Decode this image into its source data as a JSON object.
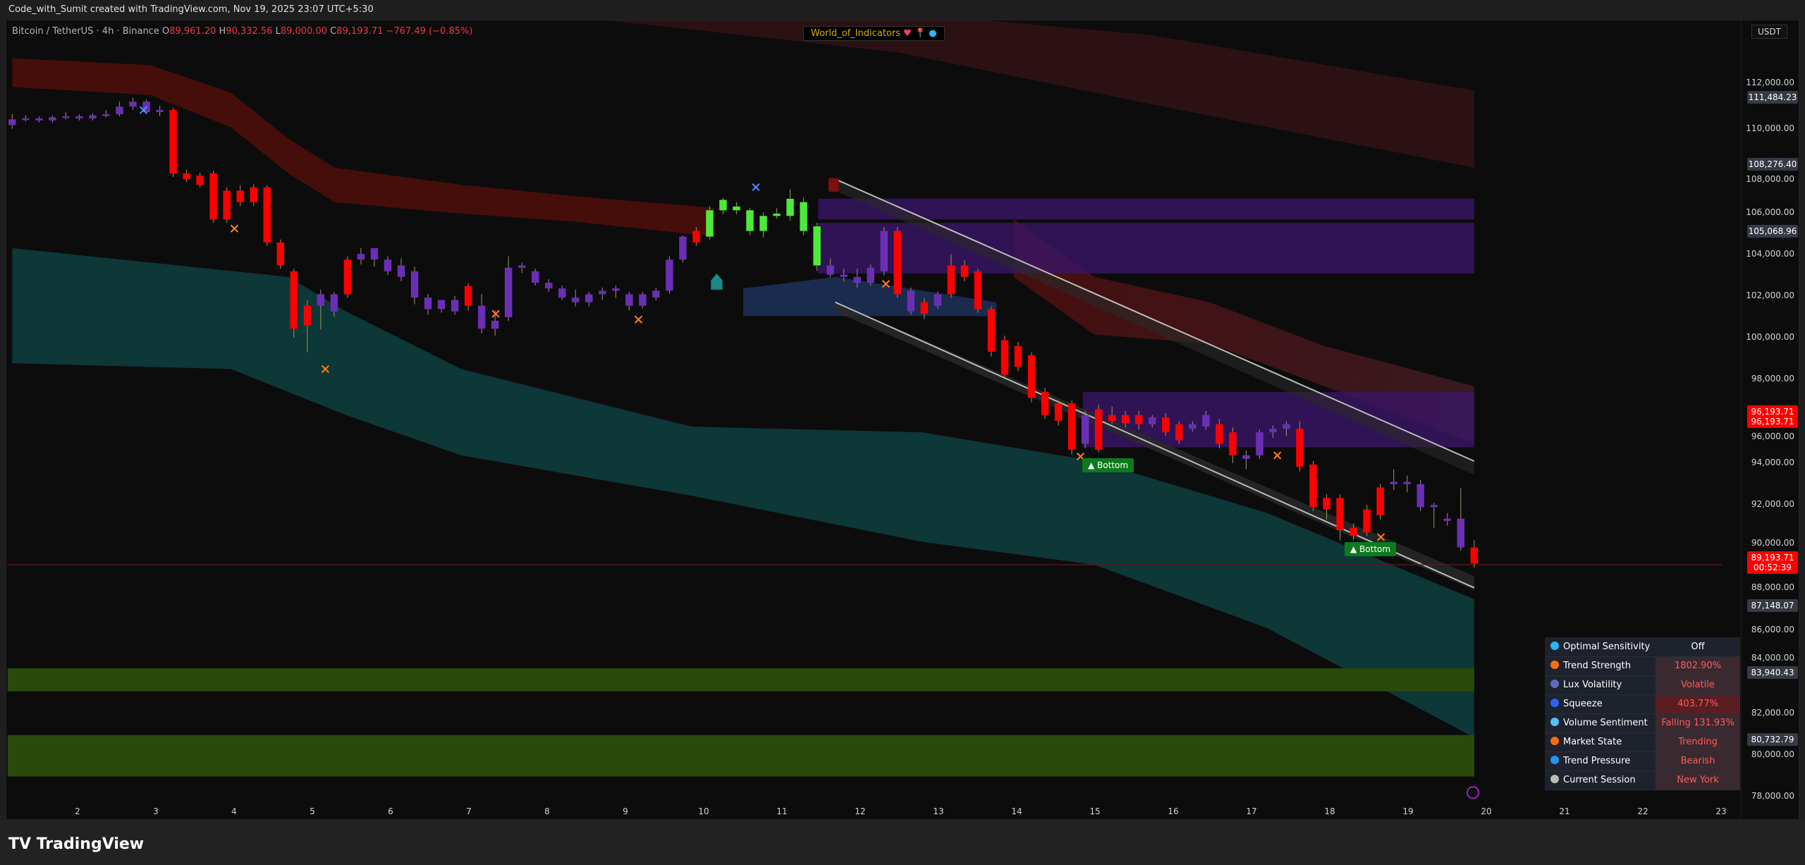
{
  "topbar": {
    "caption": "Code_with_Sumit created with TradingView.com, Nov 19, 2025 23:07 UTC+5:30"
  },
  "legend": {
    "symbol": "Bitcoin / TetherUS · 4h · Binance",
    "o_label": "O",
    "o": "89,961.20",
    "h_label": "H",
    "h": "90,332.56",
    "l_label": "L",
    "l": "89,000.00",
    "c_label": "C",
    "c": "89,193.71",
    "change": "−767.49 (−0.85%)"
  },
  "watermark": {
    "text": "World_of_Indicators"
  },
  "price_axis": {
    "currency": "USDT",
    "labels": [
      {
        "value": "111,484.23",
        "price": 111484.23,
        "style": "gray"
      },
      {
        "value": "108,276.40",
        "price": 108276.4,
        "style": "gray"
      },
      {
        "value": "105,068.96",
        "price": 105068.96,
        "style": "gray"
      },
      {
        "value": "96,193.71",
        "value2": "96,193.71",
        "price": 96193.71,
        "style": "red"
      },
      {
        "value": "89,193.71",
        "value2": "00:52:39",
        "price": 89193.71,
        "style": "red"
      },
      {
        "value": "87,148.07",
        "price": 87148.07,
        "style": "gray"
      },
      {
        "value": "83,940.43",
        "price": 83940.43,
        "style": "gray"
      },
      {
        "value": "80,732.79",
        "price": 80732.79,
        "style": "gray"
      }
    ]
  },
  "markers": {
    "bottom_1": "Bottom",
    "bottom_2": "Bottom"
  },
  "table": {
    "rows": [
      {
        "icon": "optimal-sensitivity-icon",
        "label": "Optimal Sensitivity",
        "value": "Off",
        "color": "#29b6f6"
      },
      {
        "icon": "trend-strength-icon",
        "label": "Trend Strength",
        "value": "1802.90%",
        "color": "#ff6d00"
      },
      {
        "icon": "volatility-icon",
        "label": "Lux Volatility",
        "value": "Volatile",
        "color": "#5c6bc0"
      },
      {
        "icon": "squeeze-icon",
        "label": "Squeeze",
        "value": "403.77%",
        "color": "#2962ff"
      },
      {
        "icon": "droplet-icon",
        "label": "Volume Sentiment",
        "value": "Falling 131.93%",
        "color": "#4fc3f7"
      },
      {
        "icon": "market-state-icon",
        "label": "Market State",
        "value": "Trending",
        "color": "#ff6d00"
      },
      {
        "icon": "trend-pressure-icon",
        "label": "Trend Pressure",
        "value": "Bearish",
        "color": "#2196f3"
      },
      {
        "icon": "clock-icon",
        "label": "Current Session",
        "value": "New York",
        "color": "#bbbbbb"
      }
    ]
  },
  "footer": {
    "logo": "TradingView"
  },
  "chart_data": {
    "type": "candlestick",
    "title": "Bitcoin / TetherUS · 4h · Binance",
    "ylim": [
      77000,
      113500
    ],
    "y_ticks": [
      78000,
      80000,
      82000,
      84000,
      86000,
      88000,
      90000,
      92000,
      94000,
      96000,
      98000,
      100000,
      102000,
      104000,
      106000,
      108000,
      110000,
      112000
    ],
    "x_ticks": [
      "2",
      "3",
      "4",
      "5",
      "6",
      "7",
      "8",
      "9",
      "10",
      "11",
      "12",
      "13",
      "14",
      "15",
      "16",
      "17",
      "18",
      "19",
      "20",
      "21",
      "22",
      "23"
    ],
    "colors": {
      "bearish": "#ff0000",
      "neutral": "#6a2fb5",
      "bullish": "#4cea3a"
    },
    "candles": [
      [
        110180,
        110700,
        110000,
        110450,
        "p"
      ],
      [
        110450,
        110650,
        110350,
        110500,
        "p"
      ],
      [
        110500,
        110600,
        110300,
        110400,
        "p"
      ],
      [
        110400,
        110650,
        110300,
        110550,
        "p"
      ],
      [
        110550,
        110800,
        110450,
        110600,
        "p"
      ],
      [
        110600,
        110700,
        110400,
        110500,
        "p"
      ],
      [
        110500,
        110750,
        110400,
        110650,
        "p"
      ],
      [
        110650,
        110900,
        110550,
        110700,
        "p"
      ],
      [
        110700,
        111300,
        110600,
        111060,
        "p"
      ],
      [
        111060,
        111484,
        110900,
        111300,
        "p"
      ],
      [
        111300,
        111400,
        110700,
        110800,
        "p"
      ],
      [
        110800,
        111100,
        110600,
        110900,
        "p"
      ],
      [
        110900,
        111000,
        107700,
        107870,
        "r"
      ],
      [
        107870,
        108050,
        107450,
        107590,
        "r"
      ],
      [
        107760,
        107900,
        107200,
        107320,
        "r"
      ],
      [
        107870,
        108000,
        105500,
        105660,
        "r"
      ],
      [
        107040,
        107200,
        105500,
        105660,
        "r"
      ],
      [
        107040,
        107300,
        106300,
        106490,
        "r"
      ],
      [
        107200,
        107350,
        106300,
        106490,
        "r"
      ],
      [
        107200,
        107300,
        104400,
        104560,
        "r"
      ],
      [
        104560,
        104700,
        103300,
        103460,
        "r"
      ],
      [
        103180,
        103300,
        100000,
        100430,
        "r"
      ],
      [
        101530,
        101800,
        99300,
        100590,
        "r"
      ],
      [
        101530,
        102300,
        100400,
        102080,
        "p"
      ],
      [
        101260,
        102200,
        101000,
        102080,
        "p"
      ],
      [
        103740,
        103900,
        101900,
        102080,
        "r"
      ],
      [
        103740,
        104300,
        103500,
        104010,
        "p"
      ],
      [
        103740,
        104200,
        103400,
        104290,
        "p"
      ],
      [
        103740,
        103900,
        103000,
        103180,
        "p"
      ],
      [
        103460,
        103800,
        102700,
        102910,
        "p"
      ],
      [
        103180,
        103400,
        101600,
        101920,
        "p"
      ],
      [
        101920,
        102100,
        101100,
        101370,
        "p"
      ],
      [
        101370,
        101800,
        101200,
        101810,
        "p"
      ],
      [
        101810,
        102000,
        101100,
        101260,
        "p"
      ],
      [
        102470,
        102600,
        101300,
        101530,
        "r"
      ],
      [
        101530,
        102100,
        100200,
        100430,
        "p"
      ],
      [
        100430,
        101300,
        100100,
        100810,
        "p"
      ],
      [
        100980,
        103900,
        100800,
        103350,
        "p"
      ],
      [
        103350,
        103600,
        103100,
        103460,
        "p"
      ],
      [
        103180,
        103300,
        102500,
        102630,
        "p"
      ],
      [
        102630,
        102800,
        102200,
        102360,
        "p"
      ],
      [
        102360,
        102500,
        101800,
        101920,
        "p"
      ],
      [
        101920,
        102300,
        101500,
        101700,
        "p"
      ],
      [
        101700,
        102200,
        101500,
        102080,
        "p"
      ],
      [
        102080,
        102400,
        101800,
        102250,
        "p"
      ],
      [
        102250,
        102500,
        101900,
        102360,
        "p"
      ],
      [
        102080,
        102200,
        101300,
        101530,
        "p"
      ],
      [
        101530,
        102200,
        101400,
        102080,
        "p"
      ],
      [
        101920,
        102400,
        101800,
        102250,
        "p"
      ],
      [
        102250,
        103900,
        102100,
        103740,
        "p"
      ],
      [
        103740,
        104900,
        103600,
        104840,
        "p"
      ],
      [
        105110,
        105300,
        104400,
        104560,
        "r"
      ],
      [
        104840,
        106300,
        104700,
        106100,
        "g"
      ],
      [
        106100,
        106700,
        105900,
        106600,
        "g"
      ],
      [
        106100,
        106500,
        105900,
        106280,
        "g"
      ],
      [
        105110,
        106200,
        104900,
        106100,
        "g"
      ],
      [
        105110,
        106000,
        104800,
        105830,
        "g"
      ],
      [
        105830,
        106200,
        105700,
        105940,
        "g"
      ],
      [
        105830,
        107100,
        105600,
        106650,
        "g"
      ],
      [
        105110,
        106700,
        104900,
        106490,
        "g"
      ],
      [
        103460,
        105500,
        103200,
        105330,
        "g"
      ],
      [
        103460,
        103800,
        102900,
        103020,
        "p"
      ],
      [
        103020,
        103300,
        102700,
        102910,
        "p"
      ],
      [
        102910,
        103300,
        102400,
        102630,
        "p"
      ],
      [
        102630,
        103500,
        102500,
        103350,
        "p"
      ],
      [
        103180,
        105300,
        103000,
        105110,
        "p"
      ],
      [
        105110,
        105300,
        101900,
        102080,
        "r"
      ],
      [
        102250,
        102400,
        101100,
        101260,
        "p"
      ],
      [
        101700,
        101900,
        100900,
        101150,
        "r"
      ],
      [
        101530,
        102200,
        101400,
        102080,
        "p"
      ],
      [
        103460,
        104000,
        101900,
        102080,
        "r"
      ],
      [
        103460,
        103700,
        102700,
        102910,
        "r"
      ],
      [
        103180,
        103300,
        101200,
        101370,
        "r"
      ],
      [
        101370,
        101500,
        99100,
        99330,
        "r"
      ],
      [
        99880,
        100100,
        98000,
        98230,
        "r"
      ],
      [
        99600,
        99800,
        98400,
        98610,
        "r"
      ],
      [
        99160,
        99300,
        96900,
        97120,
        "r"
      ],
      [
        97400,
        97600,
        96100,
        96300,
        "r"
      ],
      [
        96850,
        97000,
        95800,
        96020,
        "r"
      ],
      [
        96850,
        97000,
        94400,
        94640,
        "r"
      ],
      [
        94920,
        96500,
        94700,
        96300,
        "p"
      ],
      [
        96570,
        96800,
        94500,
        94640,
        "r"
      ],
      [
        96300,
        96700,
        95900,
        96020,
        "r"
      ],
      [
        96300,
        96500,
        95700,
        95910,
        "r"
      ],
      [
        96300,
        96500,
        95600,
        95860,
        "r"
      ],
      [
        95860,
        96300,
        95700,
        96190,
        "p"
      ],
      [
        96190,
        96400,
        95300,
        95470,
        "r"
      ],
      [
        95860,
        96000,
        94900,
        95090,
        "r"
      ],
      [
        95640,
        96000,
        95500,
        95860,
        "p"
      ],
      [
        95750,
        96500,
        95600,
        96300,
        "p"
      ],
      [
        95860,
        96100,
        94700,
        94920,
        "r"
      ],
      [
        95470,
        95700,
        94000,
        94370,
        "r"
      ],
      [
        94370,
        94600,
        93700,
        94200,
        "p"
      ],
      [
        94370,
        95600,
        94200,
        95470,
        "p"
      ],
      [
        95470,
        95800,
        95200,
        95640,
        "p"
      ],
      [
        95640,
        96000,
        95300,
        95860,
        "p"
      ],
      [
        95640,
        96000,
        93600,
        93820,
        "r"
      ],
      [
        93930,
        94100,
        91700,
        91890,
        "r"
      ],
      [
        92330,
        92500,
        91300,
        91780,
        "r"
      ],
      [
        92330,
        92500,
        90300,
        90790,
        "r"
      ],
      [
        90900,
        91100,
        90300,
        90510,
        "r"
      ],
      [
        91780,
        92000,
        90500,
        90680,
        "r"
      ],
      [
        92830,
        93000,
        91300,
        91500,
        "r"
      ],
      [
        93100,
        93700,
        92700,
        92990,
        "p"
      ],
      [
        92990,
        93400,
        92600,
        93100,
        "p"
      ],
      [
        92990,
        93200,
        91700,
        91890,
        "p"
      ],
      [
        91890,
        92100,
        90900,
        91990,
        "p"
      ],
      [
        91340,
        91600,
        91000,
        91230,
        "p"
      ],
      [
        91340,
        92800,
        89800,
        89960,
        "p"
      ],
      [
        89960,
        90300,
        89000,
        89190,
        "r"
      ]
    ]
  }
}
